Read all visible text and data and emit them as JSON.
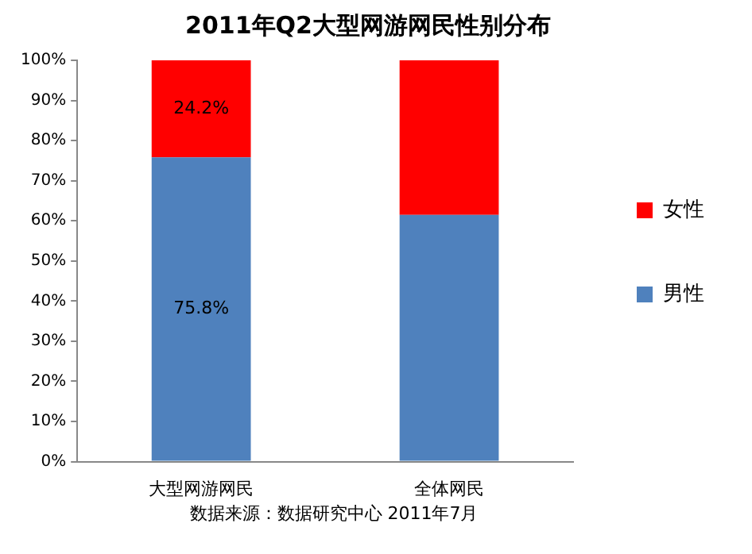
{
  "chart_data": {
    "type": "bar",
    "title": "2011年Q2大型网游网民性别分布",
    "categories": [
      "大型网游网民",
      "全体网民"
    ],
    "stacked": true,
    "series": [
      {
        "name": "男性",
        "color": "#4f81bd",
        "values": [
          75.8,
          61.5
        ],
        "value_labels": [
          "75.8%",
          null
        ]
      },
      {
        "name": "女性",
        "color": "#ff0000",
        "values": [
          24.2,
          38.5
        ],
        "value_labels": [
          "24.2%",
          null
        ]
      }
    ],
    "ylim": [
      0,
      100
    ],
    "yticks": [
      {
        "value": 0,
        "label": "0%"
      },
      {
        "value": 10,
        "label": "10%"
      },
      {
        "value": 20,
        "label": "20%"
      },
      {
        "value": 30,
        "label": "30%"
      },
      {
        "value": 40,
        "label": "40%"
      },
      {
        "value": 50,
        "label": "50%"
      },
      {
        "value": 60,
        "label": "60%"
      },
      {
        "value": 70,
        "label": "70%"
      },
      {
        "value": 80,
        "label": "80%"
      },
      {
        "value": 90,
        "label": "90%"
      },
      {
        "value": 100,
        "label": "100%"
      }
    ],
    "grid": false,
    "legend": "right",
    "annotations": [
      "数据来源：数据研究中心 2011年7月"
    ]
  }
}
